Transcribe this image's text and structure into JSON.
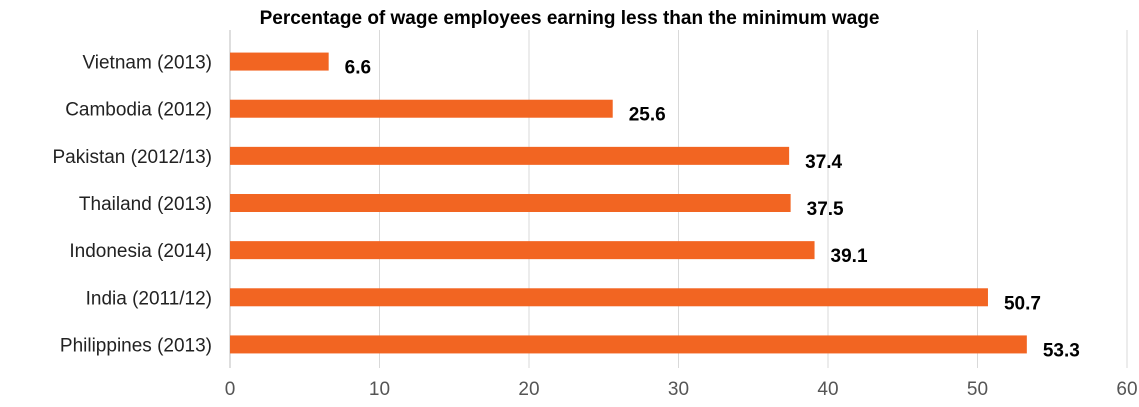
{
  "chart_data": {
    "type": "bar",
    "orientation": "horizontal",
    "title": "Percentage of wage employees earning less than the minimum wage",
    "xlabel": "",
    "ylabel": "",
    "categories": [
      "Vietnam (2013)",
      "Cambodia (2012)",
      "Pakistan (2012/13)",
      "Thailand (2013)",
      "Indonesia (2014)",
      "India (2011/12)",
      "Philippines (2013)"
    ],
    "values": [
      6.6,
      25.6,
      37.4,
      37.5,
      39.1,
      50.7,
      53.3
    ],
    "xlim": [
      0,
      60
    ],
    "xticks": [
      0,
      10,
      20,
      30,
      40,
      50,
      60
    ],
    "grid": true,
    "data_labels": true,
    "bar_color": "#f26522"
  }
}
